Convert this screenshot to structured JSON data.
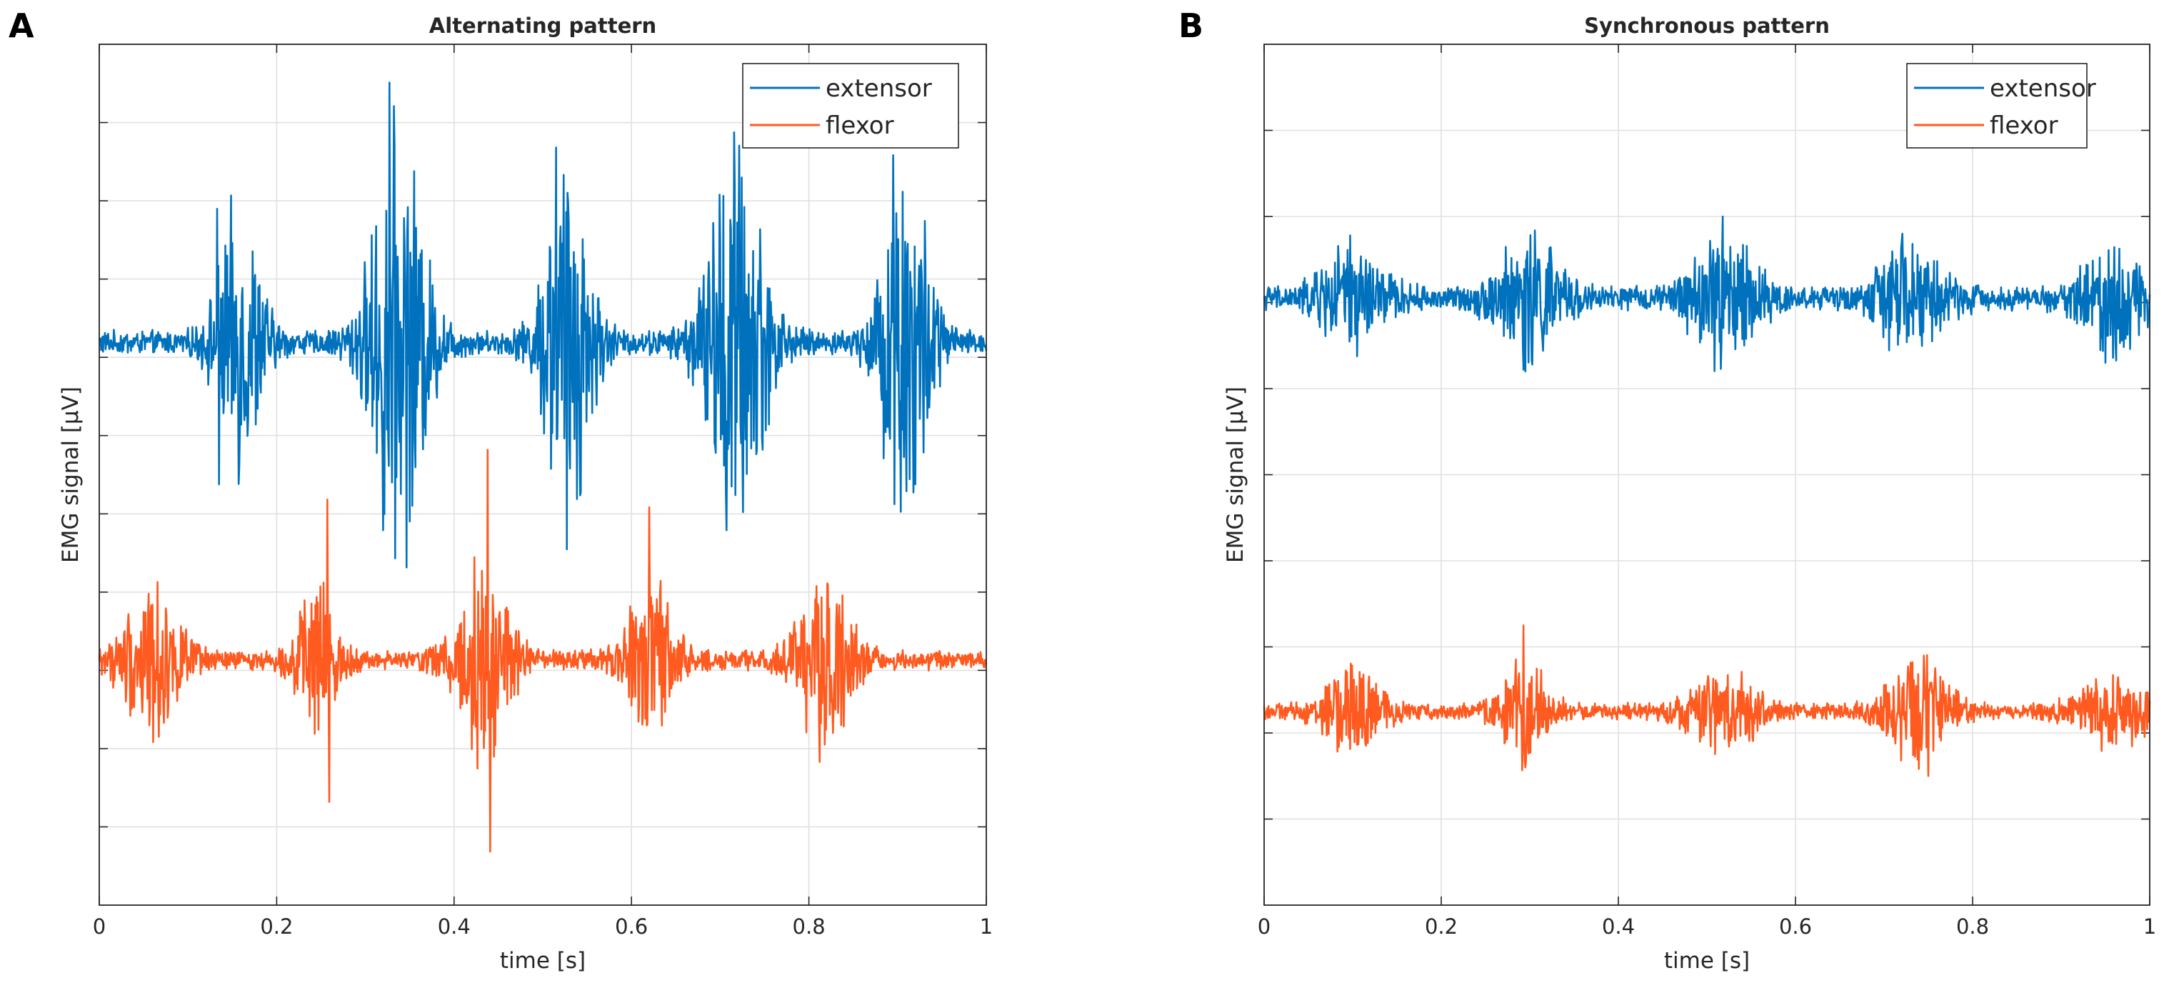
{
  "chart_data": [
    {
      "panel": "A",
      "type": "line",
      "title": "Alternating pattern",
      "xlabel": "time [s]",
      "ylabel": "EMG signal [μV]",
      "xlim": [
        0,
        1
      ],
      "xticks": [
        0,
        0.2,
        0.4,
        0.6,
        0.8,
        1
      ],
      "xtick_labels": [
        "0",
        "0.2",
        "0.4",
        "0.6",
        "0.8",
        "1"
      ],
      "ylim": [
        -13,
        9.5
      ],
      "ytick_count": 11,
      "ytick_labels_shown": false,
      "grid": true,
      "legend_position": "top-right",
      "series": [
        {
          "name": "extensor",
          "color": "#0072BD",
          "baseline": 1.7,
          "noise": 0.25,
          "bursts": [
            {
              "t": 0.158,
              "amp": 2.8,
              "w": 0.028
            },
            {
              "t": 0.337,
              "amp": 4.4,
              "w": 0.035
            },
            {
              "t": 0.528,
              "amp": 3.8,
              "w": 0.03
            },
            {
              "t": 0.718,
              "amp": 4.2,
              "w": 0.036
            },
            {
              "t": 0.909,
              "amp": 4.0,
              "w": 0.03
            }
          ],
          "peaks": [
            {
              "t": 0.133,
              "v": 5.2
            },
            {
              "t": 0.135,
              "v": -2.0
            },
            {
              "t": 0.327,
              "v": 8.5
            },
            {
              "t": 0.32,
              "v": -3.2
            },
            {
              "t": 0.515,
              "v": 6.8
            },
            {
              "t": 0.527,
              "v": -3.7
            },
            {
              "t": 0.716,
              "v": 7.2
            },
            {
              "t": 0.707,
              "v": -3.2
            },
            {
              "t": 0.895,
              "v": 6.6
            },
            {
              "t": 0.92,
              "v": -2.0
            }
          ]
        },
        {
          "name": "flexor",
          "color": "#FF5A1F",
          "baseline": -6.6,
          "noise": 0.2,
          "bursts": [
            {
              "t": 0.058,
              "amp": 1.6,
              "w": 0.035
            },
            {
              "t": 0.245,
              "amp": 1.4,
              "w": 0.025
            },
            {
              "t": 0.432,
              "amp": 2.2,
              "w": 0.035
            },
            {
              "t": 0.622,
              "amp": 1.6,
              "w": 0.03
            },
            {
              "t": 0.818,
              "amp": 1.8,
              "w": 0.035
            }
          ],
          "peaks": [
            {
              "t": 0.257,
              "v": -2.4
            },
            {
              "t": 0.259,
              "v": -10.3
            },
            {
              "t": 0.438,
              "v": -1.1
            },
            {
              "t": 0.441,
              "v": -11.6
            },
            {
              "t": 0.62,
              "v": -2.6
            },
            {
              "t": 0.067,
              "v": -8.6
            }
          ]
        }
      ]
    },
    {
      "panel": "B",
      "type": "line",
      "title": "Synchronous pattern",
      "xlabel": "time [s]",
      "ylabel": "EMG signal [μV]",
      "xlim": [
        0,
        1
      ],
      "xticks": [
        0,
        0.2,
        0.4,
        0.6,
        0.8,
        1
      ],
      "xtick_labels": [
        "0",
        "0.2",
        "0.4",
        "0.6",
        "0.8",
        "1"
      ],
      "ylim": [
        -10,
        10
      ],
      "ytick_count": 10,
      "ytick_labels_shown": false,
      "grid": true,
      "legend_position": "top-right",
      "series": [
        {
          "name": "extensor",
          "color": "#0072BD",
          "baseline": 4.1,
          "noise": 0.22,
          "bursts": [
            {
              "t": 0.1,
              "amp": 0.9,
              "w": 0.04
            },
            {
              "t": 0.3,
              "amp": 1.1,
              "w": 0.04
            },
            {
              "t": 0.52,
              "amp": 1.2,
              "w": 0.04
            },
            {
              "t": 0.73,
              "amp": 1.0,
              "w": 0.04
            },
            {
              "t": 0.96,
              "amp": 0.9,
              "w": 0.04
            }
          ],
          "peaks": [
            {
              "t": 0.518,
              "v": 6.0
            },
            {
              "t": 0.295,
              "v": 2.4
            },
            {
              "t": 0.95,
              "v": 2.6
            }
          ]
        },
        {
          "name": "flexor",
          "color": "#FF5A1F",
          "baseline": -5.5,
          "noise": 0.15,
          "bursts": [
            {
              "t": 0.1,
              "amp": 0.8,
              "w": 0.035
            },
            {
              "t": 0.295,
              "amp": 0.9,
              "w": 0.03
            },
            {
              "t": 0.52,
              "amp": 0.8,
              "w": 0.04
            },
            {
              "t": 0.74,
              "amp": 0.9,
              "w": 0.04
            },
            {
              "t": 0.96,
              "amp": 0.6,
              "w": 0.045
            }
          ],
          "peaks": [
            {
              "t": 0.293,
              "v": -3.5
            },
            {
              "t": 0.295,
              "v": -6.8
            },
            {
              "t": 0.75,
              "v": -3.8
            },
            {
              "t": 0.75,
              "v": -7.0
            }
          ]
        }
      ]
    }
  ]
}
